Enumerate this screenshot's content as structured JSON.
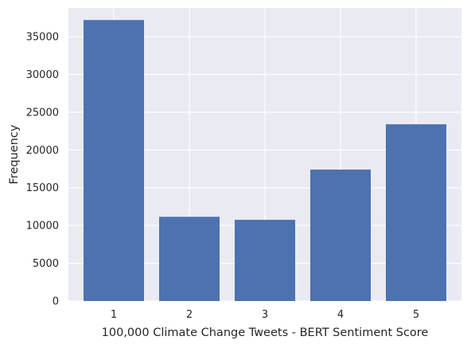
{
  "chart_data": {
    "type": "bar",
    "categories": [
      "1",
      "2",
      "3",
      "4",
      "5"
    ],
    "values": [
      37200,
      11150,
      10750,
      17400,
      23400
    ],
    "xlabel": "100,000 Climate Change Tweets - BERT Sentiment Score",
    "ylabel": "Frequency",
    "ylim": [
      0,
      38800
    ],
    "yticks": [
      0,
      5000,
      10000,
      15000,
      20000,
      25000,
      30000,
      35000
    ],
    "ytick_labels": [
      "0",
      "5000",
      "10000",
      "15000",
      "20000",
      "25000",
      "30000",
      "35000"
    ],
    "grid": true,
    "colors": {
      "bar": "#4c72b0",
      "plot_background": "#eaeaf2",
      "grid": "#ffffff",
      "text": "#262626"
    }
  }
}
